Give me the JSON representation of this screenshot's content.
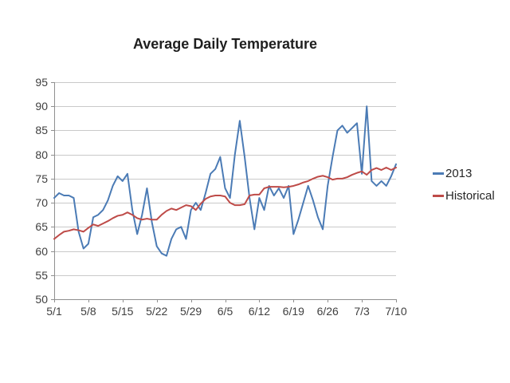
{
  "chart_data": {
    "type": "line",
    "title": "Average Daily Temperature",
    "xlabel": "",
    "ylabel": "",
    "x_range": [
      "5/1",
      "7/10"
    ],
    "x_unit": "day",
    "x_tick_labels": [
      "5/1",
      "5/8",
      "5/15",
      "5/22",
      "5/29",
      "6/5",
      "6/12",
      "6/19",
      "6/26",
      "7/3",
      "7/10"
    ],
    "x_tick_interval_days": 7,
    "y_ticks": [
      50,
      55,
      60,
      65,
      70,
      75,
      80,
      85,
      90,
      95
    ],
    "ylim": [
      50,
      95
    ],
    "grid": "horizontal",
    "legend_position": "right",
    "series": [
      {
        "name": "2013",
        "color": "#4B7BB5",
        "values": [
          71,
          72,
          71.5,
          71.5,
          71,
          64,
          60.5,
          61.5,
          67,
          67.5,
          68.5,
          70.5,
          73.5,
          75.5,
          74.5,
          76,
          68.5,
          63.5,
          67.5,
          73,
          66,
          61,
          59.5,
          59,
          62.5,
          64.5,
          65,
          62.5,
          68.5,
          70,
          68.5,
          72,
          76,
          77,
          79.5,
          73,
          71,
          80,
          87,
          79.5,
          71,
          64.5,
          71,
          68.5,
          73.5,
          71.5,
          73,
          71,
          73.5,
          63.5,
          66.5,
          70,
          73.5,
          70.5,
          67,
          64.5,
          73.5,
          79.5,
          85,
          86,
          84.5,
          85.5,
          86.5,
          76,
          90,
          74.5,
          73.5,
          74.5,
          73.5,
          75.5,
          78
        ]
      },
      {
        "name": "Historical",
        "color": "#BE4B48",
        "values": [
          62.5,
          63.3,
          64,
          64.2,
          64.5,
          64.3,
          64,
          64.8,
          65.5,
          65.2,
          65.7,
          66.2,
          66.8,
          67.3,
          67.5,
          68,
          67.5,
          66.8,
          66.5,
          66.7,
          66.5,
          66.5,
          67.5,
          68.3,
          68.8,
          68.5,
          69,
          69.5,
          69.3,
          68.5,
          69.8,
          70.8,
          71.3,
          71.5,
          71.5,
          71.3,
          70,
          69.5,
          69.5,
          69.7,
          71.5,
          71.7,
          71.7,
          73,
          73.3,
          73.3,
          73.3,
          73.2,
          73.3,
          73.5,
          73.8,
          74.2,
          74.5,
          75,
          75.4,
          75.6,
          75.3,
          74.8,
          75,
          75,
          75.3,
          75.8,
          76.2,
          76.5,
          75.8,
          76.8,
          77.2,
          76.8,
          77.3,
          76.8,
          77.3
        ]
      }
    ]
  },
  "legend": {
    "items": [
      {
        "label": "2013"
      },
      {
        "label": "Historical"
      }
    ]
  },
  "colors": {
    "series_2013": "#4B7BB5",
    "series_historical": "#BE4B48",
    "gridline": "#c9c9c9",
    "axis": "#8f8f8f",
    "label_text": "#3f3f3f",
    "title_text": "#1f1f1f",
    "background": "#ffffff"
  }
}
